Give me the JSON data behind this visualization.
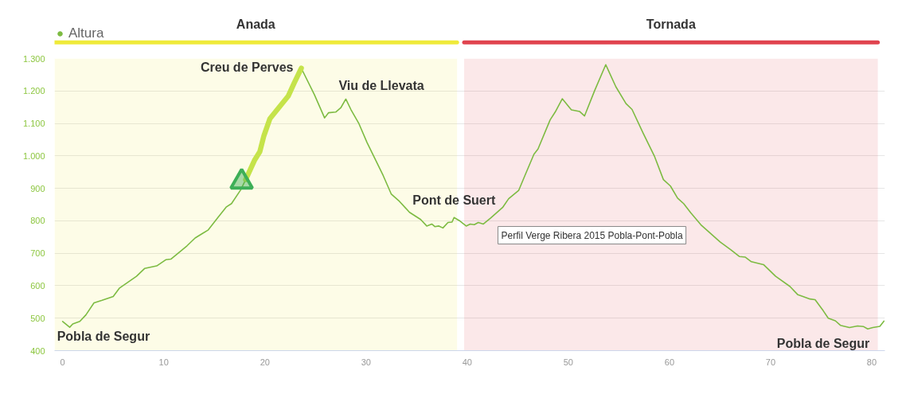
{
  "chart_data": {
    "type": "line",
    "xlim": [
      -0.8,
      81.3
    ],
    "ylim": [
      400,
      1300
    ],
    "xticks": [
      0,
      10,
      20,
      30,
      40,
      50,
      60,
      70,
      80
    ],
    "yticks": [
      400,
      500,
      600,
      700,
      800,
      900,
      {
        "value": 1000,
        "label": "1.000"
      },
      {
        "value": 1100,
        "label": "1.100"
      },
      {
        "value": 1200,
        "label": "1.200"
      },
      {
        "value": 1300,
        "label": "1.300"
      }
    ],
    "grid": "y",
    "legend": "top left",
    "series": [
      {
        "name": "Altura",
        "color": "#7dbb42",
        "x": [
          0,
          0.7,
          1.0,
          1.7,
          2.3,
          3.1,
          3.9,
          5.0,
          5.6,
          7.3,
          8.1,
          9.3,
          10.2,
          10.7,
          11.8,
          12.3,
          13.1,
          14.4,
          15.4,
          16.2,
          16.7,
          17.6,
          18.1,
          19.0,
          19.5,
          19.9,
          20.5,
          21.2,
          22.3,
          22.9,
          23.6,
          24.9,
          25.9,
          26.3,
          27.0,
          27.5,
          28.0,
          28.5,
          29.3,
          30.1,
          31.7,
          32.5,
          33.3,
          34.3,
          35.4,
          36.0,
          36.5,
          36.8,
          37.2,
          37.6,
          38.1,
          38.5,
          38.7,
          39.3,
          39.9,
          40.3,
          40.7,
          41.1,
          41.6,
          42.3,
          43.5,
          44.1,
          45.1,
          45.7,
          46.6,
          47.0,
          48.2,
          48.7,
          49.4,
          50.3,
          51.1,
          51.6,
          52.6,
          53.7,
          54.7,
          55.7,
          56.3,
          57.4,
          58.5,
          59.4,
          60.1,
          60.8,
          61.4,
          62.1,
          63.1,
          65.0,
          66.1,
          66.9,
          67.5,
          68.1,
          69.3,
          70.5,
          71.9,
          72.7,
          73.2,
          73.9,
          74.4,
          75.2,
          75.7,
          76.4,
          76.9,
          77.8,
          78.6,
          79.2,
          79.6,
          80.1,
          80.8,
          81.2
        ],
        "values": [
          490,
          472,
          482,
          490,
          510,
          547,
          555,
          567,
          592,
          629,
          653,
          661,
          680,
          682,
          710,
          723,
          747,
          772,
          812,
          843,
          853,
          895,
          927,
          988,
          1013,
          1062,
          1115,
          1142,
          1184,
          1225,
          1270,
          1188,
          1117,
          1133,
          1135,
          1148,
          1175,
          1143,
          1099,
          1041,
          939,
          882,
          860,
          826,
          804,
          784,
          790,
          782,
          784,
          778,
          795,
          796,
          810,
          799,
          784,
          790,
          788,
          795,
          790,
          808,
          841,
          868,
          894,
          939,
          1005,
          1021,
          1111,
          1135,
          1176,
          1142,
          1137,
          1123,
          1201,
          1281,
          1213,
          1161,
          1143,
          1070,
          1000,
          927,
          907,
          870,
          853,
          825,
          788,
          735,
          710,
          690,
          688,
          674,
          665,
          629,
          598,
          572,
          567,
          559,
          557,
          523,
          500,
          492,
          478,
          471,
          476,
          474,
          467,
          471,
          475,
          491
        ]
      },
      {
        "color": "#c5e34a",
        "x": [
          18.1,
          19.0,
          19.5,
          19.9,
          20.5,
          21.2,
          22.3,
          22.9,
          23.6
        ],
        "values": [
          927,
          988,
          1013,
          1062,
          1115,
          1142,
          1184,
          1225,
          1270
        ]
      },
      {
        "type": "scatter",
        "marker": "triangle",
        "color": "#3daf57",
        "x": [
          17.7
        ],
        "values": [
          920
        ]
      }
    ],
    "bands": [
      {
        "axis": "x",
        "from": -0.8,
        "to": 39.0,
        "label": "Anada",
        "color": "#efea3a"
      },
      {
        "axis": "x",
        "from": 39.7,
        "to": 80.6,
        "label": "Tornada",
        "color": "#e0434e"
      }
    ],
    "annotations": [
      {
        "text": "Pobla de Segur",
        "x": 0,
        "y": 490
      },
      {
        "text": "Creu de Perves",
        "x": 23.6,
        "y": 1270
      },
      {
        "text": "Viu de Llevata",
        "x": 28.0,
        "y": 1175
      },
      {
        "text": "Pont de Suert",
        "x": 38.7,
        "y": 810
      },
      {
        "text": "Pobla de Segur",
        "x": 81.2,
        "y": 491
      },
      "Perfil Verge Ribera 2015 Pobla-Pont-Pobla"
    ]
  }
}
